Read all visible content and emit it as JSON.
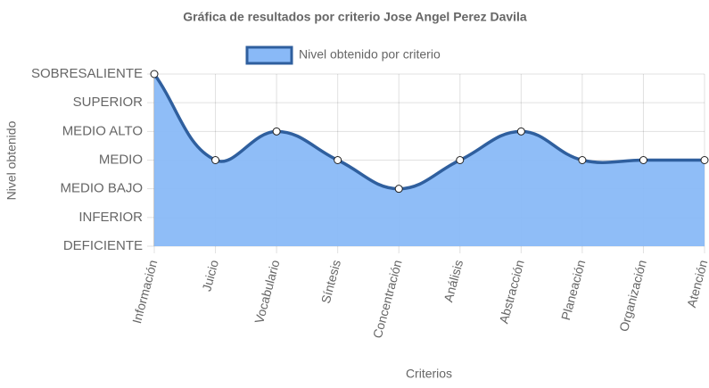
{
  "chart_data": {
    "type": "line",
    "title": "Gráfica de resultados por criterio Jose Angel Perez Davila",
    "xlabel": "Criterios",
    "ylabel": "Nivel obtenido",
    "categories": [
      "Información",
      "Juicio",
      "Vocabulario",
      "Síntesis",
      "Concentración",
      "Análisis",
      "Abstracción",
      "Planeación",
      "Organización",
      "Atención"
    ],
    "series": [
      {
        "name": "Nivel obtenido por criterio",
        "color": "#2f5f9e",
        "fill": "#89b9f7",
        "values": [
          6,
          3,
          4,
          3,
          2,
          3,
          4,
          3,
          3,
          3
        ]
      }
    ],
    "ylim": [
      0,
      6
    ],
    "yticks": [
      {
        "value": 0,
        "label": "DEFICIENTE"
      },
      {
        "value": 1,
        "label": "INFERIOR"
      },
      {
        "value": 2,
        "label": "MEDIO BAJO"
      },
      {
        "value": 3,
        "label": "MEDIO"
      },
      {
        "value": 4,
        "label": "MEDIO ALTO"
      },
      {
        "value": 5,
        "label": "SUPERIOR"
      },
      {
        "value": 6,
        "label": "SOBRESALIENTE"
      }
    ],
    "grid": true,
    "legend": "top"
  }
}
